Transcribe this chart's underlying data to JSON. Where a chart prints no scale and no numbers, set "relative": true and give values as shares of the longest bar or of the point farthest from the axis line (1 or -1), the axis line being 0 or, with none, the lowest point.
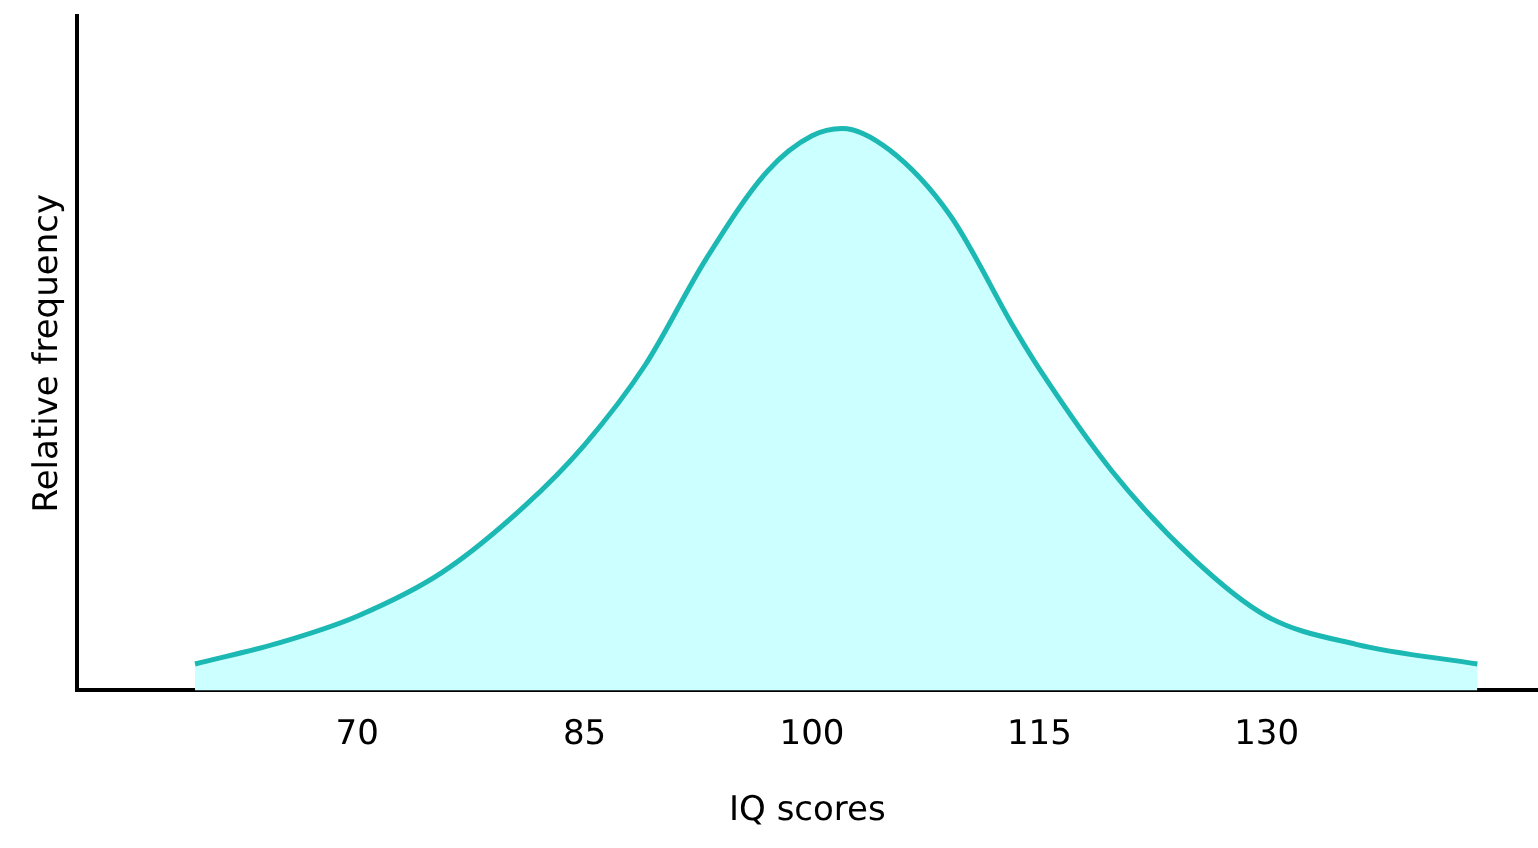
{
  "chart_data": {
    "type": "area",
    "xlabel": "IQ scores",
    "ylabel": "Relative frequency",
    "relative": true,
    "x": [
      59.3,
      64.9,
      70,
      75.6,
      81.0,
      85,
      89.0,
      93.0,
      97.1,
      100,
      102.0,
      105.1,
      109.1,
      113.4,
      115,
      119.8,
      125.2,
      130,
      135.9,
      143.9
    ],
    "series": [
      {
        "color": "#1cb8b3",
        "values": [
          0.047,
          0.085,
          0.132,
          0.21,
          0.327,
          0.437,
          0.579,
          0.767,
          0.925,
          0.987,
          1,
          0.962,
          0.846,
          0.642,
          0.572,
          0.39,
          0.233,
          0.132,
          0.082,
          0.047
        ]
      }
    ],
    "xlim": [
      51.5,
      147.9
    ],
    "xticks": [
      70,
      85,
      100,
      115,
      130
    ],
    "grid": false,
    "legend": false,
    "marker": "none",
    "line_style": "solid"
  }
}
